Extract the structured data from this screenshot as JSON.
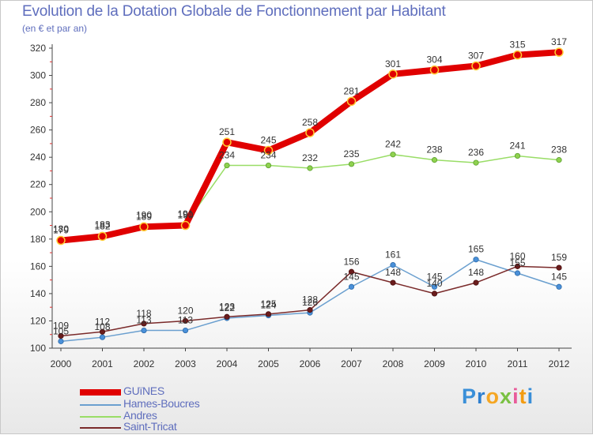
{
  "chart_data": {
    "type": "line",
    "title": "Evolution de la Dotation Globale de Fonctionnement par Habitant",
    "subtitle": "(en € et par an)",
    "xlabel": "",
    "ylabel": "",
    "x": [
      "2000",
      "2001",
      "2002",
      "2003",
      "2004",
      "2005",
      "2006",
      "2007",
      "2008",
      "2009",
      "2010",
      "2011",
      "2012"
    ],
    "ylim": [
      100,
      320
    ],
    "yticks": [
      100,
      120,
      140,
      160,
      180,
      200,
      220,
      240,
      260,
      280,
      300,
      320
    ],
    "grid": false,
    "legend_position": "bottom-left",
    "series": [
      {
        "name": "GUïNES",
        "color": "#e00000",
        "values": [
          179,
          182,
          189,
          190,
          251,
          245,
          258,
          281,
          301,
          304,
          307,
          315,
          317
        ],
        "labels": [
          "179",
          "182",
          "189",
          "190",
          "251",
          "245",
          "258",
          "281",
          "301",
          "304",
          "307",
          "315",
          "317"
        ]
      },
      {
        "name": "Hames-Boucres",
        "color": "#6a9fcf",
        "values": [
          105,
          108,
          113,
          113,
          122,
          124,
          126,
          145,
          161,
          145,
          165,
          155,
          145
        ],
        "labels": [
          "105",
          "108",
          "113",
          "113",
          "122",
          "124",
          "126",
          "145",
          "161",
          "145",
          "165",
          "155",
          "145"
        ]
      },
      {
        "name": "Andres",
        "color": "#99dd66",
        "values": [
          180,
          183,
          190,
          191,
          234,
          234,
          232,
          235,
          242,
          238,
          236,
          241,
          238
        ],
        "labels": [
          "180",
          "183",
          "190",
          "191",
          "234",
          "234",
          "232",
          "235",
          "242",
          "238",
          "236",
          "241",
          "238"
        ]
      },
      {
        "name": "Saint-Tricat",
        "color": "#7a2a2a",
        "values": [
          109,
          112,
          118,
          120,
          123,
          125,
          128,
          156,
          148,
          140,
          148,
          160,
          159
        ],
        "labels": [
          "109",
          "112",
          "118",
          "120",
          "123",
          "125",
          "128",
          "156",
          "148",
          "140",
          "148",
          "160",
          "159"
        ]
      }
    ]
  },
  "logo": {
    "letters": [
      "P",
      "r",
      "o",
      "x",
      "i",
      "t",
      "i"
    ],
    "colors": [
      "#3a8fd8",
      "#2e7fcf",
      "#f5a623",
      "#7ac143",
      "#e85c9a",
      "#f39c12",
      "#3a8fd8"
    ]
  }
}
